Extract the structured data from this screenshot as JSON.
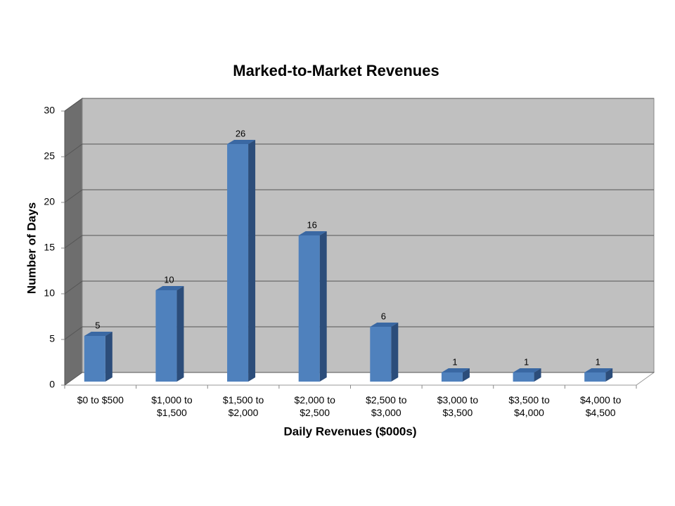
{
  "chart_data": {
    "type": "bar3d",
    "title": "Marked-to-Market Revenues",
    "x_label": "Daily Revenues ($000s)",
    "y_label": "Number of Days",
    "categories": [
      "$0 to $500",
      "$1,000 to $1,500",
      "$1,500 to $2,000",
      "$2,000 to $2,500",
      "$2,500 to $3,000",
      "$3,000 to $3,500",
      "$3,500 to $4,000",
      "$4,000 to $4,500"
    ],
    "values": [
      5,
      10,
      26,
      16,
      6,
      1,
      1,
      1
    ],
    "color": "#4f81bd",
    "ylim": [
      0,
      30
    ],
    "yticks": [
      0,
      5,
      10,
      15,
      20,
      25,
      30
    ],
    "grid": true
  }
}
